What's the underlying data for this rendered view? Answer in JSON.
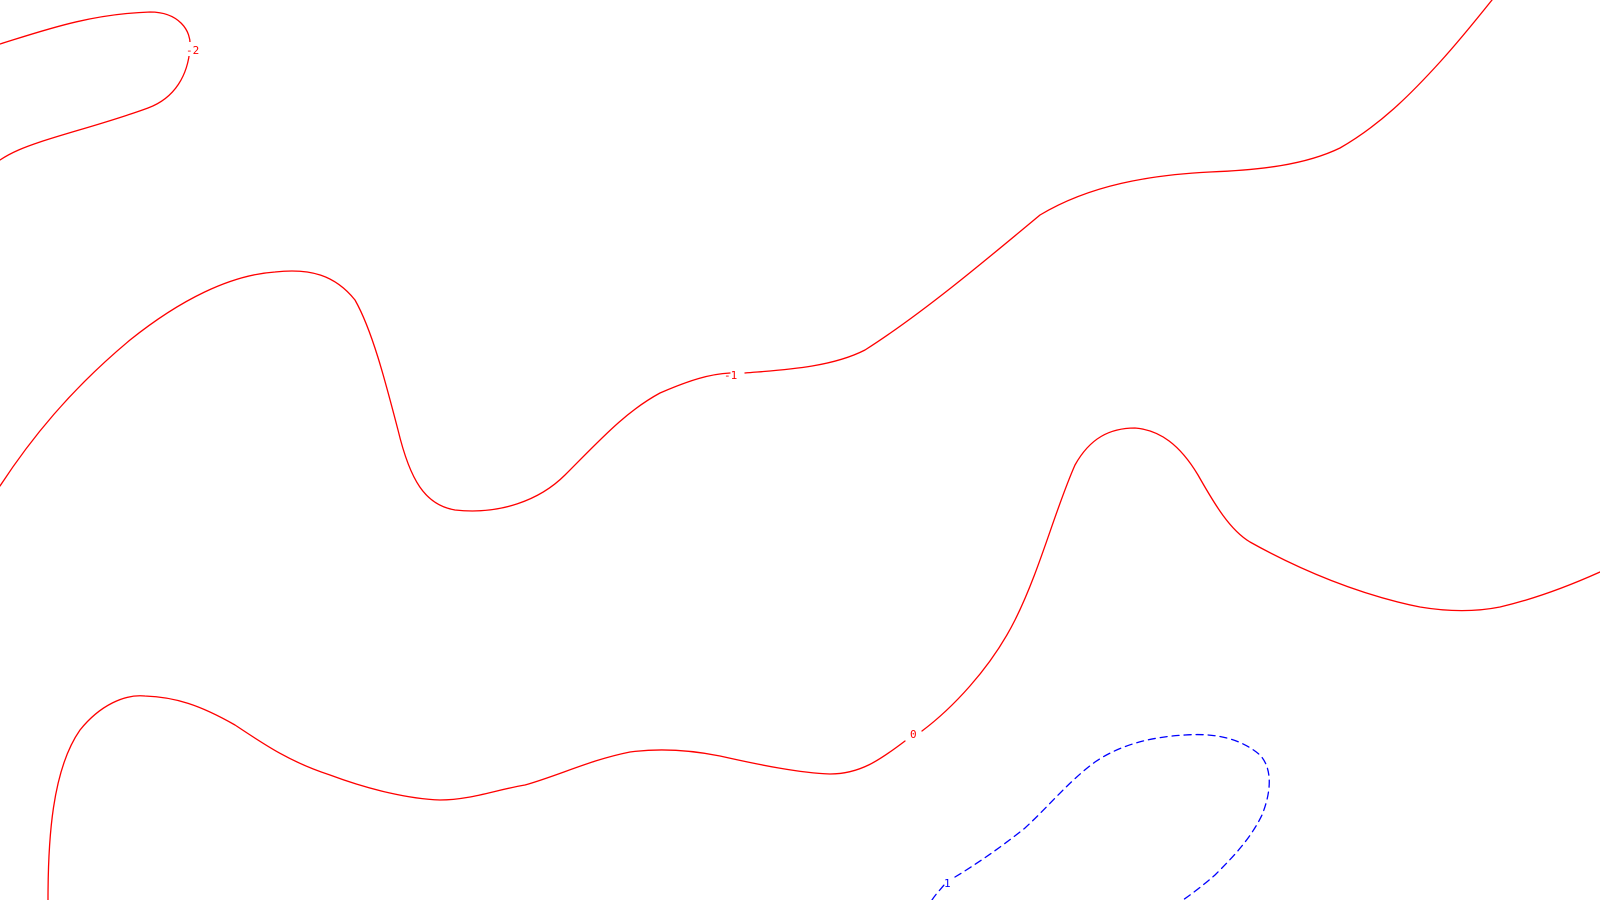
{
  "contours": [
    {
      "name": "contour-minus-2",
      "level": "-2",
      "color": "#ff0000",
      "style": "solid"
    },
    {
      "name": "contour-minus-1",
      "level": "-1",
      "color": "#ff0000",
      "style": "solid"
    },
    {
      "name": "contour-zero",
      "level": "0",
      "color": "#ff0000",
      "style": "solid"
    },
    {
      "name": "contour-plus-1",
      "level": "1",
      "color": "#0000ff",
      "style": "dashed"
    }
  ]
}
